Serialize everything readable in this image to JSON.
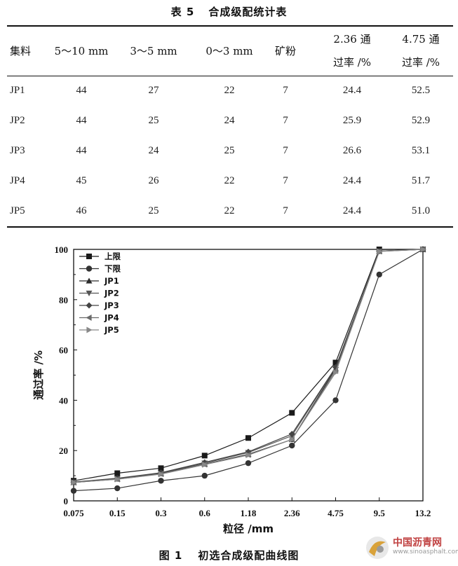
{
  "table": {
    "caption_number": "表 5",
    "caption_text": "合成级配统计表",
    "headers": [
      "集料",
      "5～10 mm",
      "3～5 mm",
      "0～3 mm",
      "矿粉",
      "2.36 通",
      "4.75 通"
    ],
    "headers_line2": [
      "",
      "",
      "",
      "",
      "",
      "过率 /%",
      "过率 /%"
    ],
    "rows": [
      [
        "JP1",
        "44",
        "27",
        "22",
        "7",
        "24.4",
        "52.5"
      ],
      [
        "JP2",
        "44",
        "25",
        "24",
        "7",
        "25.9",
        "52.9"
      ],
      [
        "JP3",
        "44",
        "24",
        "25",
        "7",
        "26.6",
        "53.1"
      ],
      [
        "JP4",
        "45",
        "26",
        "22",
        "7",
        "24.4",
        "51.7"
      ],
      [
        "JP5",
        "46",
        "25",
        "22",
        "7",
        "24.4",
        "51.0"
      ]
    ]
  },
  "figure": {
    "caption_number": "图 1",
    "caption_text": "初选合成级配曲线图"
  },
  "watermark": {
    "text": "中国沥青网",
    "url": "www.sinoasphalt.com"
  },
  "chart_data": {
    "type": "line",
    "xlabel": "粒径 /mm",
    "ylabel": "通过率 /%",
    "categories": [
      "0.075",
      "0.15",
      "0.3",
      "0.6",
      "1.18",
      "2.36",
      "4.75",
      "9.5",
      "13.2"
    ],
    "ylim": [
      0,
      100
    ],
    "yticks": [
      0,
      20,
      40,
      60,
      80,
      100
    ],
    "legend_position": "top-left",
    "grid": false,
    "series": [
      {
        "name": "上限",
        "marker": "square",
        "color": "#1a1a1a",
        "values": [
          8,
          11,
          13,
          18,
          25,
          35,
          55,
          100,
          100
        ]
      },
      {
        "name": "下限",
        "marker": "circle",
        "color": "#333333",
        "values": [
          4,
          5,
          8,
          10,
          15,
          22,
          40,
          90,
          100
        ]
      },
      {
        "name": "JP1",
        "marker": "triangle-up",
        "color": "#2b2b2b",
        "values": [
          7.3,
          8.7,
          10.8,
          14.6,
          18.5,
          24.4,
          52.5,
          99.3,
          100
        ]
      },
      {
        "name": "JP2",
        "marker": "triangle-down",
        "color": "#555555",
        "values": [
          7.4,
          8.9,
          11.0,
          15.0,
          19.2,
          25.9,
          52.9,
          99.3,
          100
        ]
      },
      {
        "name": "JP3",
        "marker": "diamond",
        "color": "#444444",
        "values": [
          7.5,
          9.0,
          11.2,
          15.3,
          19.5,
          26.6,
          53.1,
          99.3,
          100
        ]
      },
      {
        "name": "JP4",
        "marker": "triangle-left",
        "color": "#6a6a6a",
        "values": [
          7.3,
          8.6,
          10.7,
          14.5,
          18.3,
          24.4,
          51.7,
          99.2,
          100
        ]
      },
      {
        "name": "JP5",
        "marker": "triangle-right",
        "color": "#888888",
        "values": [
          7.3,
          8.6,
          10.6,
          14.4,
          18.2,
          24.4,
          51.0,
          99.2,
          100
        ]
      }
    ]
  }
}
